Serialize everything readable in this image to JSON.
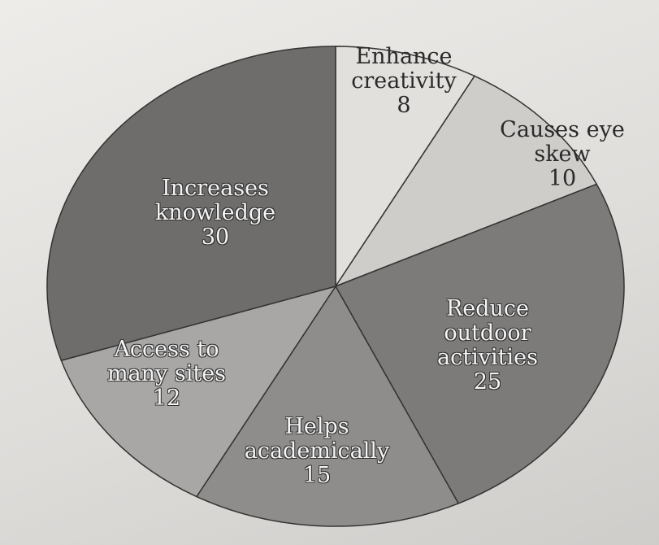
{
  "chart_data": {
    "type": "pie",
    "categories": [
      "Enhance creativity",
      "Causes eye skew",
      "Reduce outdoor activities",
      "Helps academically",
      "Access to many sites",
      "Increases knowledge"
    ],
    "values": [
      8,
      10,
      25,
      15,
      12,
      30
    ],
    "colors": [
      "#e2e0dd",
      "#cfcdca",
      "#7d7b79",
      "#8f8d8b",
      "#a9a7a5",
      "#6f6d6b"
    ]
  }
}
